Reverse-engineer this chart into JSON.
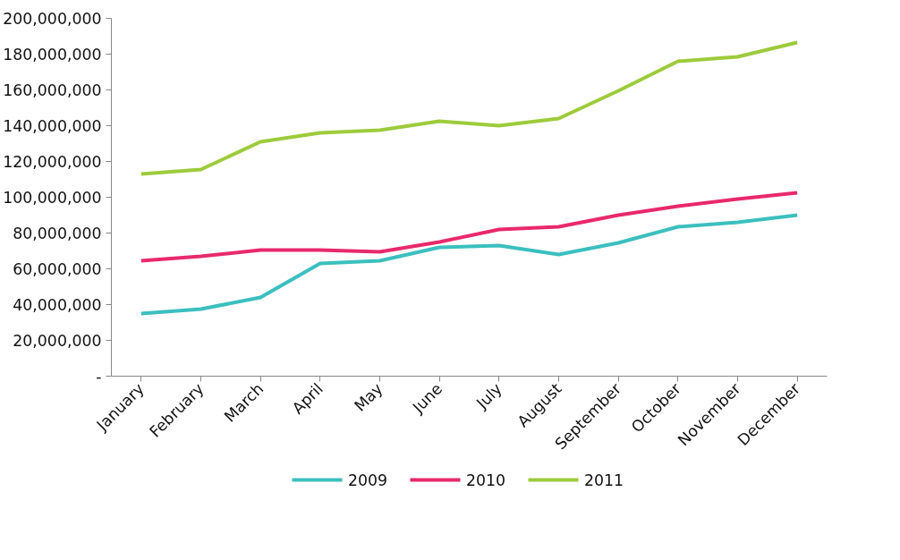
{
  "chart_data": {
    "type": "line",
    "categories": [
      "January",
      "February",
      "March",
      "April",
      "May",
      "June",
      "July",
      "August",
      "September",
      "October",
      "November",
      "December"
    ],
    "series": [
      {
        "name": "2009",
        "color": "#3cbfbf",
        "values": [
          35000000,
          37500000,
          44000000,
          63000000,
          64500000,
          72000000,
          73000000,
          68000000,
          74500000,
          83500000,
          86000000,
          90000000
        ]
      },
      {
        "name": "2010",
        "color": "#e9296c",
        "values": [
          64500000,
          67000000,
          70500000,
          70500000,
          69500000,
          75000000,
          82000000,
          83500000,
          90000000,
          95000000,
          99000000,
          102500000
        ]
      },
      {
        "name": "2011",
        "color": "#9dcb3c",
        "values": [
          113000000,
          115500000,
          131000000,
          136000000,
          137500000,
          142500000,
          140000000,
          144000000,
          159500000,
          176000000,
          178500000,
          186500000
        ]
      }
    ],
    "ylim": [
      0,
      200000000
    ],
    "yticks": [
      {
        "value": 0,
        "label": "-"
      },
      {
        "value": 20000000,
        "label": "20,000,000"
      },
      {
        "value": 40000000,
        "label": "40,000,000"
      },
      {
        "value": 60000000,
        "label": "60,000,000"
      },
      {
        "value": 80000000,
        "label": "80,000,000"
      },
      {
        "value": 100000000,
        "label": "100,000,000"
      },
      {
        "value": 120000000,
        "label": "120,000,000"
      },
      {
        "value": 140000000,
        "label": "140,000,000"
      },
      {
        "value": 160000000,
        "label": "160,000,000"
      },
      {
        "value": 180000000,
        "label": "180,000,000"
      },
      {
        "value": 200000000,
        "label": "200,000,000"
      }
    ],
    "grid": false,
    "legend": "bottom",
    "marker": "none",
    "line_style": "solid"
  }
}
